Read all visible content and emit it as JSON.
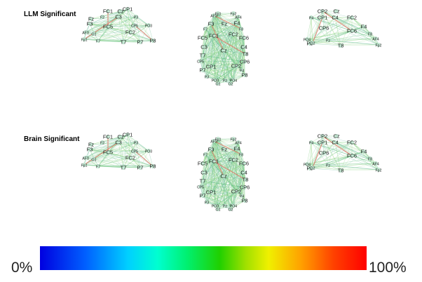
{
  "rows": [
    {
      "label": "LLM Significant",
      "panels": {
        "left": [
          "FC1",
          "Cz",
          "CP1",
          "F2",
          "C3",
          "P3",
          "Fz",
          "F3",
          "FC5",
          "CP5",
          "PO3",
          "AF3",
          "O1",
          "Fp1",
          "F7",
          "T7",
          "P7",
          "P8",
          "FC2"
        ],
        "center": [
          "AF3",
          "Fp1",
          "Fp2",
          "AF4",
          "F3",
          "Fz",
          "F4",
          "F7",
          "F8",
          "FC1",
          "FC2",
          "FC5",
          "FC6",
          "Cz",
          "C3",
          "C4",
          "T7",
          "T8",
          "CP5",
          "CP6",
          "CP1",
          "CP2",
          "P7",
          "P4",
          "P3",
          "P8",
          "PO3",
          "Pz",
          "PO4",
          "O1",
          "O2"
        ],
        "right": [
          "CP2",
          "Cz",
          "P4",
          "P8",
          "CP1",
          "C4",
          "FC2",
          "CP6",
          "FC6",
          "F4",
          "F8",
          "AF4",
          "PO4",
          "O2",
          "Fp2",
          "T8",
          "Pz"
        ]
      }
    },
    {
      "label": "Brain Significant",
      "panels": {
        "left": [
          "FC1",
          "Cz",
          "CP1",
          "F2",
          "C3",
          "P3",
          "Fz",
          "F3",
          "FC5",
          "CP5",
          "PO3",
          "AF3",
          "O1",
          "Fp1",
          "F7",
          "T7",
          "P7",
          "P8",
          "FC2"
        ],
        "center": [
          "AF3",
          "Fp1",
          "Fp2",
          "AF4",
          "F3",
          "Fz",
          "F4",
          "F7",
          "F8",
          "FC1",
          "FC2",
          "FC5",
          "FC6",
          "Cz",
          "C3",
          "C4",
          "T7",
          "T8",
          "CP5",
          "CP6",
          "CP1",
          "CP2",
          "P7",
          "P4",
          "P3",
          "P8",
          "PO3",
          "Pz",
          "PO4",
          "O1",
          "O2"
        ],
        "right": [
          "CP2",
          "Cz",
          "P4",
          "P8",
          "CP1",
          "C4",
          "FC2",
          "CP6",
          "FC6",
          "F4",
          "F8",
          "AF4",
          "PO4",
          "O2",
          "Fp2",
          "T8",
          "Pz"
        ]
      }
    }
  ],
  "colorbar": {
    "min_label": "0%",
    "max_label": "100%",
    "colors": [
      "#0000e0",
      "#00d0ff",
      "#00f070",
      "#20d000",
      "#f0f000",
      "#ff0000"
    ]
  }
}
